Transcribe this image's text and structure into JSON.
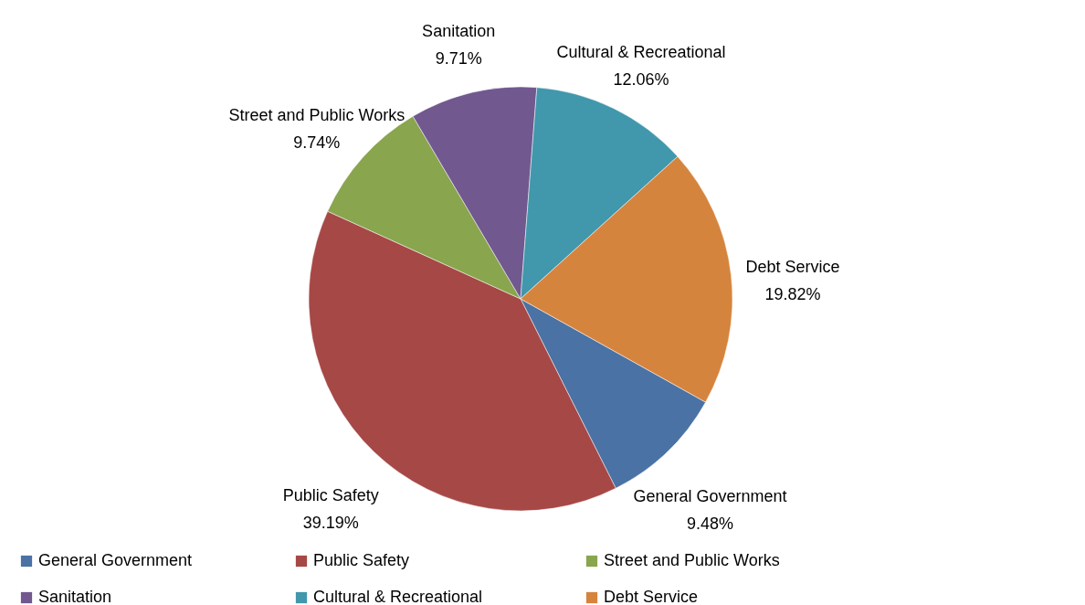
{
  "chart_data": {
    "type": "pie",
    "categories": [
      "General Government",
      "Public Safety",
      "Street and Public Works",
      "Sanitation",
      "Cultural & Recreational",
      "Debt Service"
    ],
    "values": [
      9.48,
      39.19,
      9.74,
      9.71,
      12.06,
      19.82
    ],
    "value_labels": [
      "9.48%",
      "39.19%",
      "9.74%",
      "9.71%",
      "12.06%",
      "19.82%"
    ],
    "colors": [
      "#4a72a5",
      "#a64846",
      "#89a54e",
      "#71588f",
      "#4197ab",
      "#d5843e"
    ],
    "legend": "bottom"
  }
}
